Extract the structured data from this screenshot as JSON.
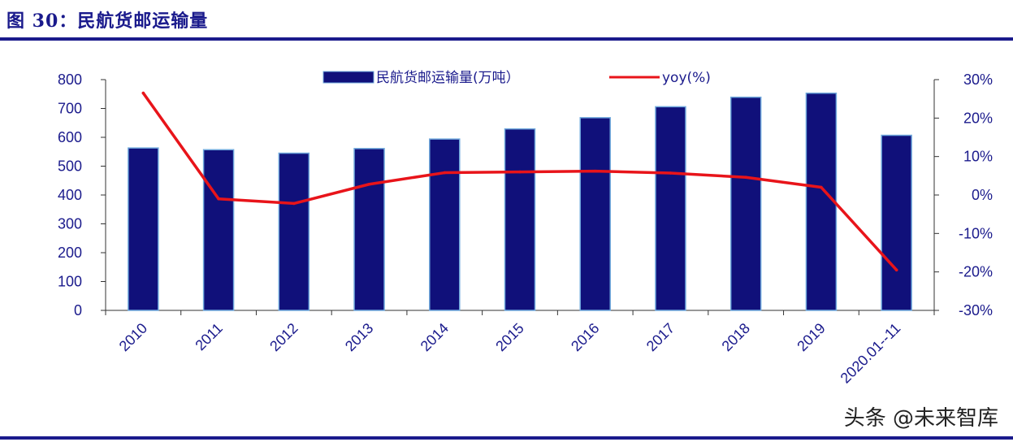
{
  "figure": {
    "title": "图 30：民航货邮运输量",
    "watermark": "头条 @未来智库"
  },
  "colors": {
    "bar_fill": "#10107a",
    "bar_stroke": "#6fa8dc",
    "line": "#e8141a",
    "axis_text": "#1a1a8c"
  },
  "chart_data": {
    "type": "bar",
    "categories": [
      "2010",
      "2011",
      "2012",
      "2013",
      "2014",
      "2015",
      "2016",
      "2017",
      "2018",
      "2019",
      "2020.01--11"
    ],
    "series": [
      {
        "name": "民航货邮运输量(万吨）",
        "type": "bar",
        "axis": "left",
        "values": [
          563,
          557,
          545,
          561,
          594,
          629,
          668,
          706,
          739,
          753,
          607
        ]
      },
      {
        "name": "yoy(%)",
        "type": "line",
        "axis": "right",
        "values": [
          26.5,
          -1.0,
          -2.2,
          2.8,
          5.8,
          6.0,
          6.2,
          5.7,
          4.6,
          2.0,
          -19.5
        ]
      }
    ],
    "left_axis": {
      "ylim": [
        0,
        800
      ],
      "ticks": [
        0,
        100,
        200,
        300,
        400,
        500,
        600,
        700,
        800
      ],
      "tick_labels": [
        "0",
        "100",
        "200",
        "300",
        "400",
        "500",
        "600",
        "700",
        "800"
      ]
    },
    "right_axis": {
      "ylim": [
        -30,
        30
      ],
      "ticks": [
        -30,
        -20,
        -10,
        0,
        10,
        20,
        30
      ],
      "tick_labels": [
        "-30%",
        "-20%",
        "-10%",
        "0%",
        "10%",
        "20%",
        "30%"
      ]
    },
    "legend": {
      "position": "top",
      "entries": [
        "民航货邮运输量(万吨）",
        "yoy(%)"
      ]
    },
    "grid": false
  }
}
